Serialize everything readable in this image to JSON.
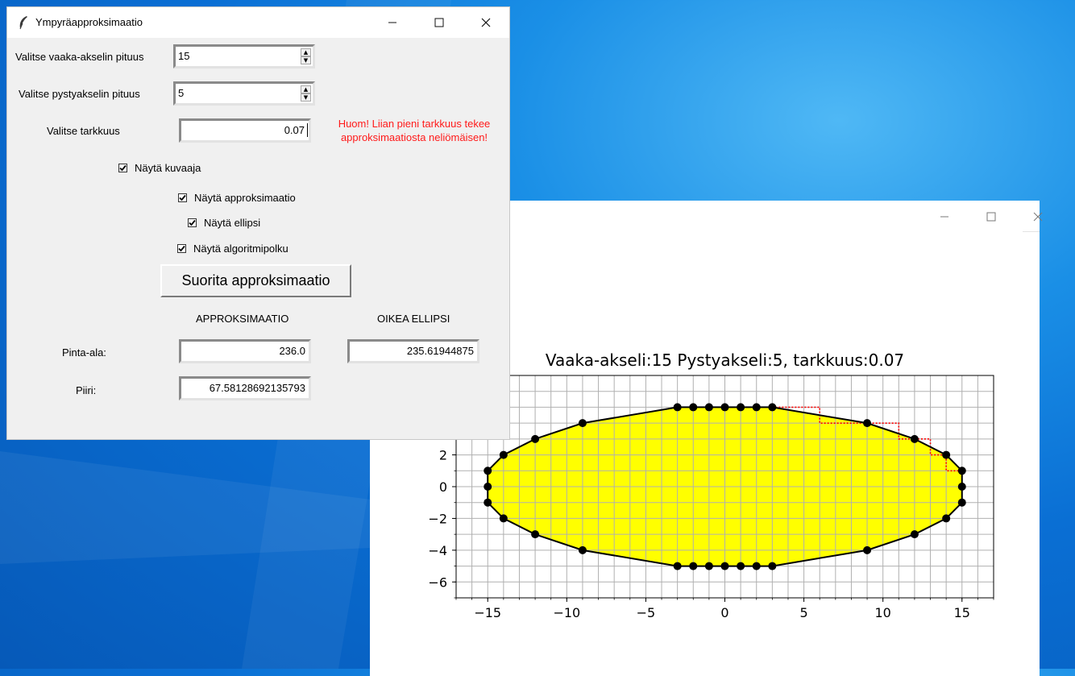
{
  "tk_window": {
    "title": "Ympyräapproksimaatio",
    "feather_icon": "feather-icon",
    "horizontal_axis": {
      "label": "Valitse vaaka-akselin pituus",
      "value": "15"
    },
    "vertical_axis": {
      "label": "Valitse pystyakselin pituus",
      "value": "5"
    },
    "precision": {
      "label": "Valitse tarkkuus",
      "value": "0.07"
    },
    "warning": "Huom! Liian pieni tarkkuus tekee approksimaatiosta neliömäisen!",
    "checkboxes": {
      "show_plot": {
        "label": "Näytä kuvaaja",
        "checked": true
      },
      "show_approximation": {
        "label": "Näytä approksimaatio",
        "checked": true
      },
      "show_ellipse": {
        "label": "Näytä ellipsi",
        "checked": true
      },
      "show_algorithm_path": {
        "label": "Näytä algoritmipolku",
        "checked": true
      }
    },
    "run_button": "Suorita approksimaatio",
    "columns": {
      "approximation": "APPROKSIMAATIO",
      "true_ellipse": "OIKEA ELLIPSI"
    },
    "area": {
      "label": "Pinta-ala:",
      "approximation": "236.0",
      "true_ellipse": "235.61944875"
    },
    "perimeter": {
      "label": "Piiri:",
      "approximation": "67.58128692135793"
    }
  },
  "plot_window": {
    "controls": [
      "minimize-icon",
      "maximize-icon",
      "close-icon"
    ]
  },
  "chart_data": {
    "type": "line",
    "title": "Vaaka-akseli:15 Pystyakseli:5, tarkkuus:0.07",
    "xlabel": "",
    "ylabel": "",
    "xlim": [
      -17,
      17
    ],
    "ylim": [
      -7,
      7
    ],
    "xticks": [
      -15,
      -10,
      -5,
      0,
      5,
      10,
      15
    ],
    "xtick_labels": [
      "−15",
      "−10",
      "−5",
      "0",
      "5",
      "10",
      "15"
    ],
    "yticks": [
      -6,
      -4,
      -2,
      0,
      2
    ],
    "ytick_labels": [
      "−6",
      "−4",
      "−2",
      "0",
      "2"
    ],
    "grid": true,
    "grid_step": 1,
    "fill_color": "#ffff00",
    "approximation": {
      "x": [
        3,
        2,
        1,
        0,
        -1,
        -2,
        -3,
        -9,
        -12,
        -14,
        -15,
        -15,
        -15,
        -14,
        -12,
        -9,
        -3,
        -2,
        -1,
        0,
        1,
        2,
        3,
        9,
        12,
        14,
        15,
        15,
        15,
        14,
        12,
        9
      ],
      "y": [
        5,
        5,
        5,
        5,
        5,
        5,
        5,
        4,
        3,
        2,
        1,
        0,
        -1,
        -2,
        -3,
        -4,
        -5,
        -5,
        -5,
        -5,
        -5,
        -5,
        -5,
        -4,
        -3,
        -2,
        -1,
        0,
        1,
        2,
        3,
        4
      ]
    },
    "ellipse": {
      "a": 15,
      "b": 5
    },
    "algorithm_path": {
      "x": [
        3,
        6,
        6,
        9,
        11,
        11,
        12,
        13,
        13,
        14,
        14,
        15,
        15
      ],
      "y": [
        5,
        5,
        4,
        4,
        4,
        3,
        3,
        3,
        2,
        2,
        1,
        1,
        0
      ]
    },
    "colors": {
      "approximation": "#000000",
      "ellipse": "#ffff00",
      "algorithm_path": "#ff0000",
      "grid": "#b0b0b0"
    }
  }
}
